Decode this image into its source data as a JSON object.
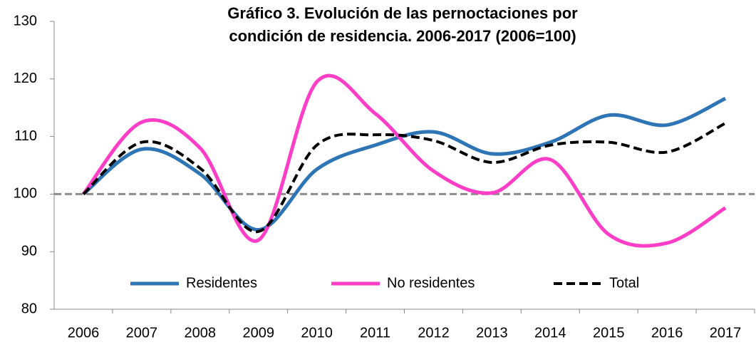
{
  "chart_data": {
    "type": "line",
    "title": [
      "Gráfico 3. Evolución de las pernoctaciones por",
      "condición de residencia. 2006-2017 (2006=100)"
    ],
    "categories": [
      "2006",
      "2007",
      "2008",
      "2009",
      "2010",
      "2011",
      "2012",
      "2013",
      "2014",
      "2015",
      "2016",
      "2017"
    ],
    "series": [
      {
        "name": "Residentes",
        "color": "#2e75b6",
        "dash": false,
        "values": [
          100,
          107.8,
          103.5,
          93.8,
          104.3,
          108.5,
          110.8,
          107,
          109,
          113.7,
          112,
          116.6
        ]
      },
      {
        "name": "No residentes",
        "color": "#ff3ec8",
        "dash": false,
        "values": [
          100,
          112.5,
          108,
          92,
          119.5,
          114,
          104,
          100.2,
          106,
          93,
          91.5,
          97.6
        ]
      },
      {
        "name": "Total",
        "color": "#000000",
        "dash": true,
        "values": [
          100,
          109,
          104.5,
          93.5,
          108.5,
          110.3,
          109.3,
          105.5,
          108.5,
          109,
          107.3,
          112.3
        ]
      }
    ],
    "reference_line": 100,
    "ylim": [
      80,
      130
    ],
    "yticks": [
      80,
      90,
      100,
      110,
      120,
      130
    ],
    "legend": "bottom"
  }
}
